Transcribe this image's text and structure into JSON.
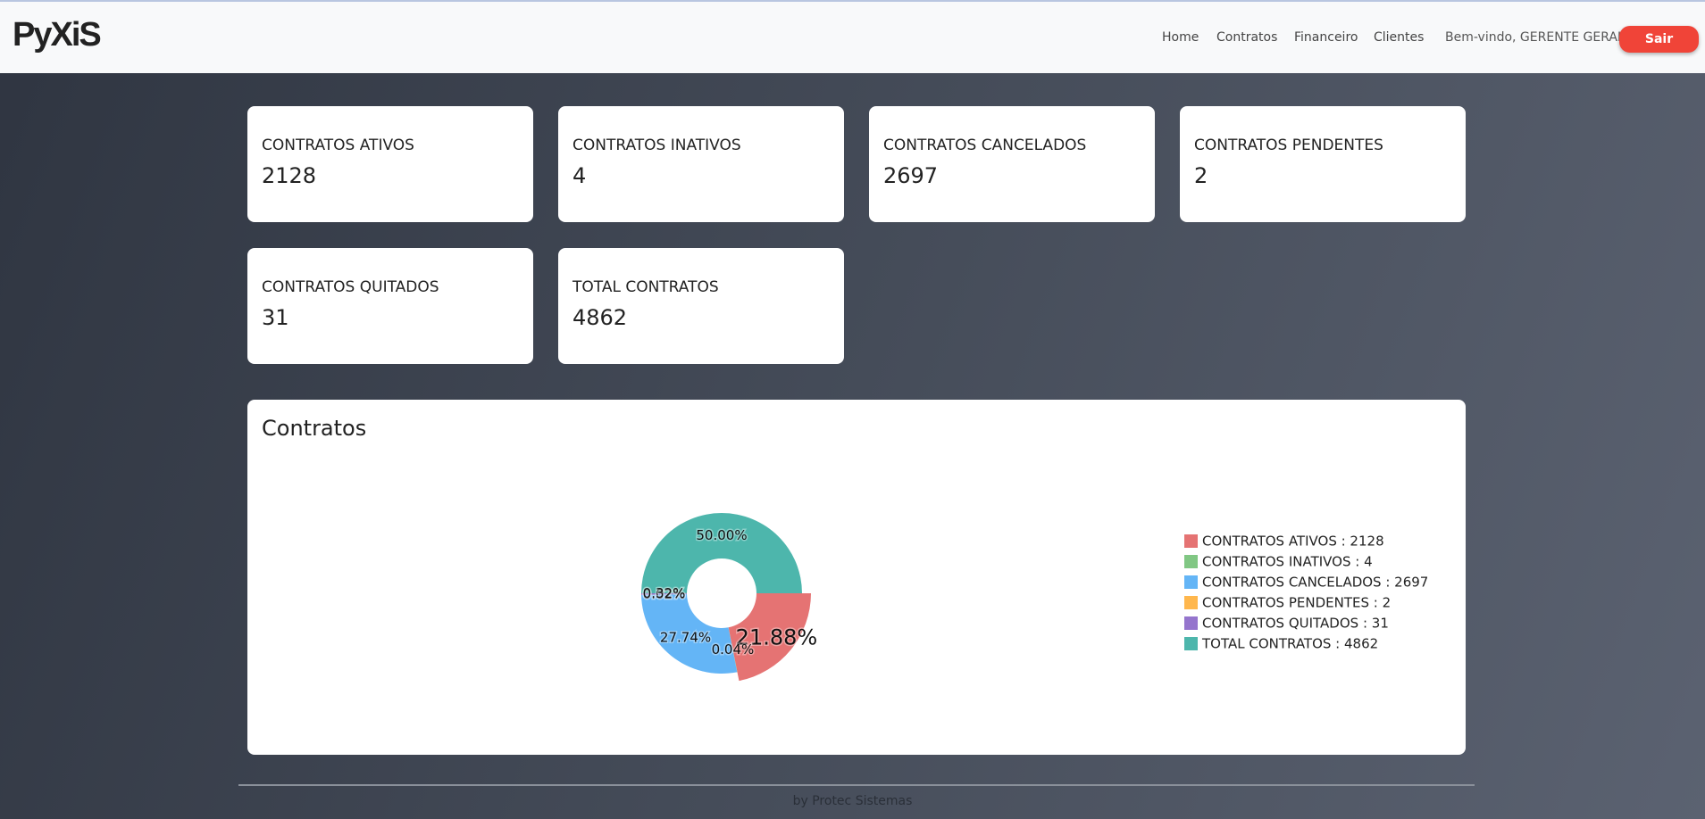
{
  "header": {
    "logo": "PyXiS",
    "nav": [
      "Home",
      "Contratos",
      "Financeiro",
      "Clientes"
    ],
    "welcome": "Bem-vindo, GERENTE GERAL",
    "logout": "Sair"
  },
  "cards": [
    {
      "label": "CONTRATOS ATIVOS",
      "value": 2128
    },
    {
      "label": "CONTRATOS INATIVOS",
      "value": 4
    },
    {
      "label": "CONTRATOS CANCELADOS",
      "value": 2697
    },
    {
      "label": "CONTRATOS PENDENTES",
      "value": 2
    },
    {
      "label": "CONTRATOS QUITADOS",
      "value": 31
    },
    {
      "label": "TOTAL CONTRATOS",
      "value": 4862
    }
  ],
  "chart_data": {
    "type": "pie",
    "title": "Contratos",
    "hole": true,
    "highlighted": 0,
    "categories": [
      "CONTRATOS ATIVOS",
      "CONTRATOS INATIVOS",
      "CONTRATOS CANCELADOS",
      "CONTRATOS PENDENTES",
      "CONTRATOS QUITADOS",
      "TOTAL CONTRATOS"
    ],
    "values": [
      2128,
      4,
      2697,
      2,
      31,
      4862
    ],
    "value_labels": [
      "21.88%",
      "0.04%",
      "27.74%",
      "0.02%",
      "0.32%",
      "50.00%"
    ],
    "colors": [
      "#e57373",
      "#81c784",
      "#64b5f6",
      "#ffb74d",
      "#9575cd",
      "#4db6ac"
    ],
    "legend": [
      "CONTRATOS ATIVOS : 2128",
      "CONTRATOS INATIVOS : 4",
      "CONTRATOS CANCELADOS : 2697",
      "CONTRATOS PENDENTES : 2",
      "CONTRATOS QUITADOS : 31",
      "TOTAL CONTRATOS : 4862"
    ],
    "legend_position": "right"
  },
  "footer": "by Protec Sistemas"
}
